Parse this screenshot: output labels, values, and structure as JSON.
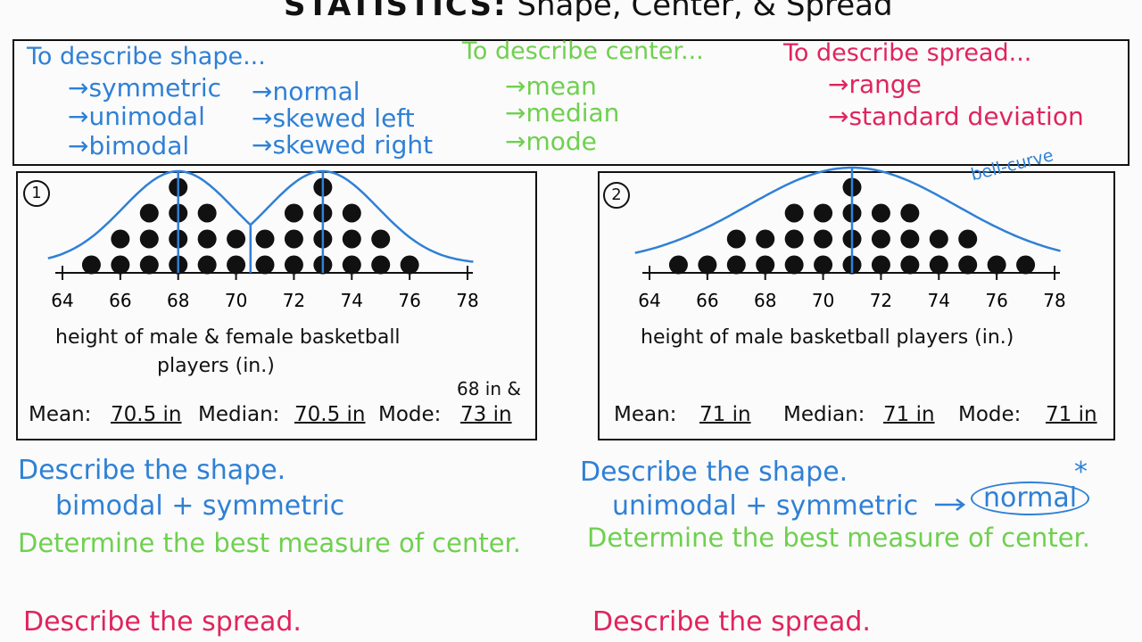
{
  "title": {
    "bold": "STATISTICS:",
    "rest": "Shape, Center, & Spread"
  },
  "shape": {
    "heading": "To describe shape...",
    "col1": [
      "→symmetric",
      "→unimodal",
      "→bimodal"
    ],
    "col2": [
      "→normal",
      "→skewed left",
      "→skewed right"
    ]
  },
  "center": {
    "heading": "To describe center...",
    "items": [
      "→mean",
      "→median",
      "→mode"
    ]
  },
  "spread": {
    "heading": "To describe spread...",
    "items": [
      "→range",
      "→standard deviation"
    ]
  },
  "colors": {
    "shape": "#2f80d6",
    "center": "#6fd04f",
    "spread": "#e0245e",
    "ink": "#111111"
  },
  "ticks": [
    "64",
    "66",
    "68",
    "70",
    "72",
    "74",
    "76",
    "78"
  ],
  "plot1": {
    "number": "1",
    "caption_line1": "height of male & female basketball",
    "caption_line2": "players (in.)",
    "mean_label": "Mean:",
    "mean_value": "70.5 in",
    "median_label": "Median:",
    "median_value": "70.5 in",
    "mode_label": "Mode:",
    "mode_value_1": "68 in &",
    "mode_value_2": "73 in",
    "dot_counts": {
      "65": 1,
      "66": 2,
      "67": 3,
      "68": 4,
      "69": 3,
      "70": 2,
      "71": 2,
      "72": 3,
      "73": 4,
      "74": 3,
      "75": 2,
      "76": 1
    }
  },
  "plot2": {
    "number": "2",
    "curve_label": "bell-curve",
    "caption": "height of male basketball players (in.)",
    "mean_label": "Mean:",
    "mean_value": "71 in",
    "median_label": "Median:",
    "median_value": "71 in",
    "mode_label": "Mode:",
    "mode_value": "71 in",
    "dot_counts": {
      "65": 1,
      "66": 1,
      "67": 2,
      "68": 2,
      "69": 3,
      "70": 3,
      "71": 4,
      "72": 3,
      "73": 3,
      "74": 2,
      "75": 2,
      "76": 1,
      "77": 1
    }
  },
  "left": {
    "q1": "Describe the shape.",
    "a1": "bimodal + symmetric",
    "q2": "Determine the best measure of center.",
    "q3": "Describe the spread."
  },
  "right": {
    "q1": "Describe the shape.",
    "a1": "unimodal + symmetric",
    "a1_circled": "normal",
    "star": "*",
    "q2": "Determine the best measure of center.",
    "q3": "Describe the spread."
  }
}
